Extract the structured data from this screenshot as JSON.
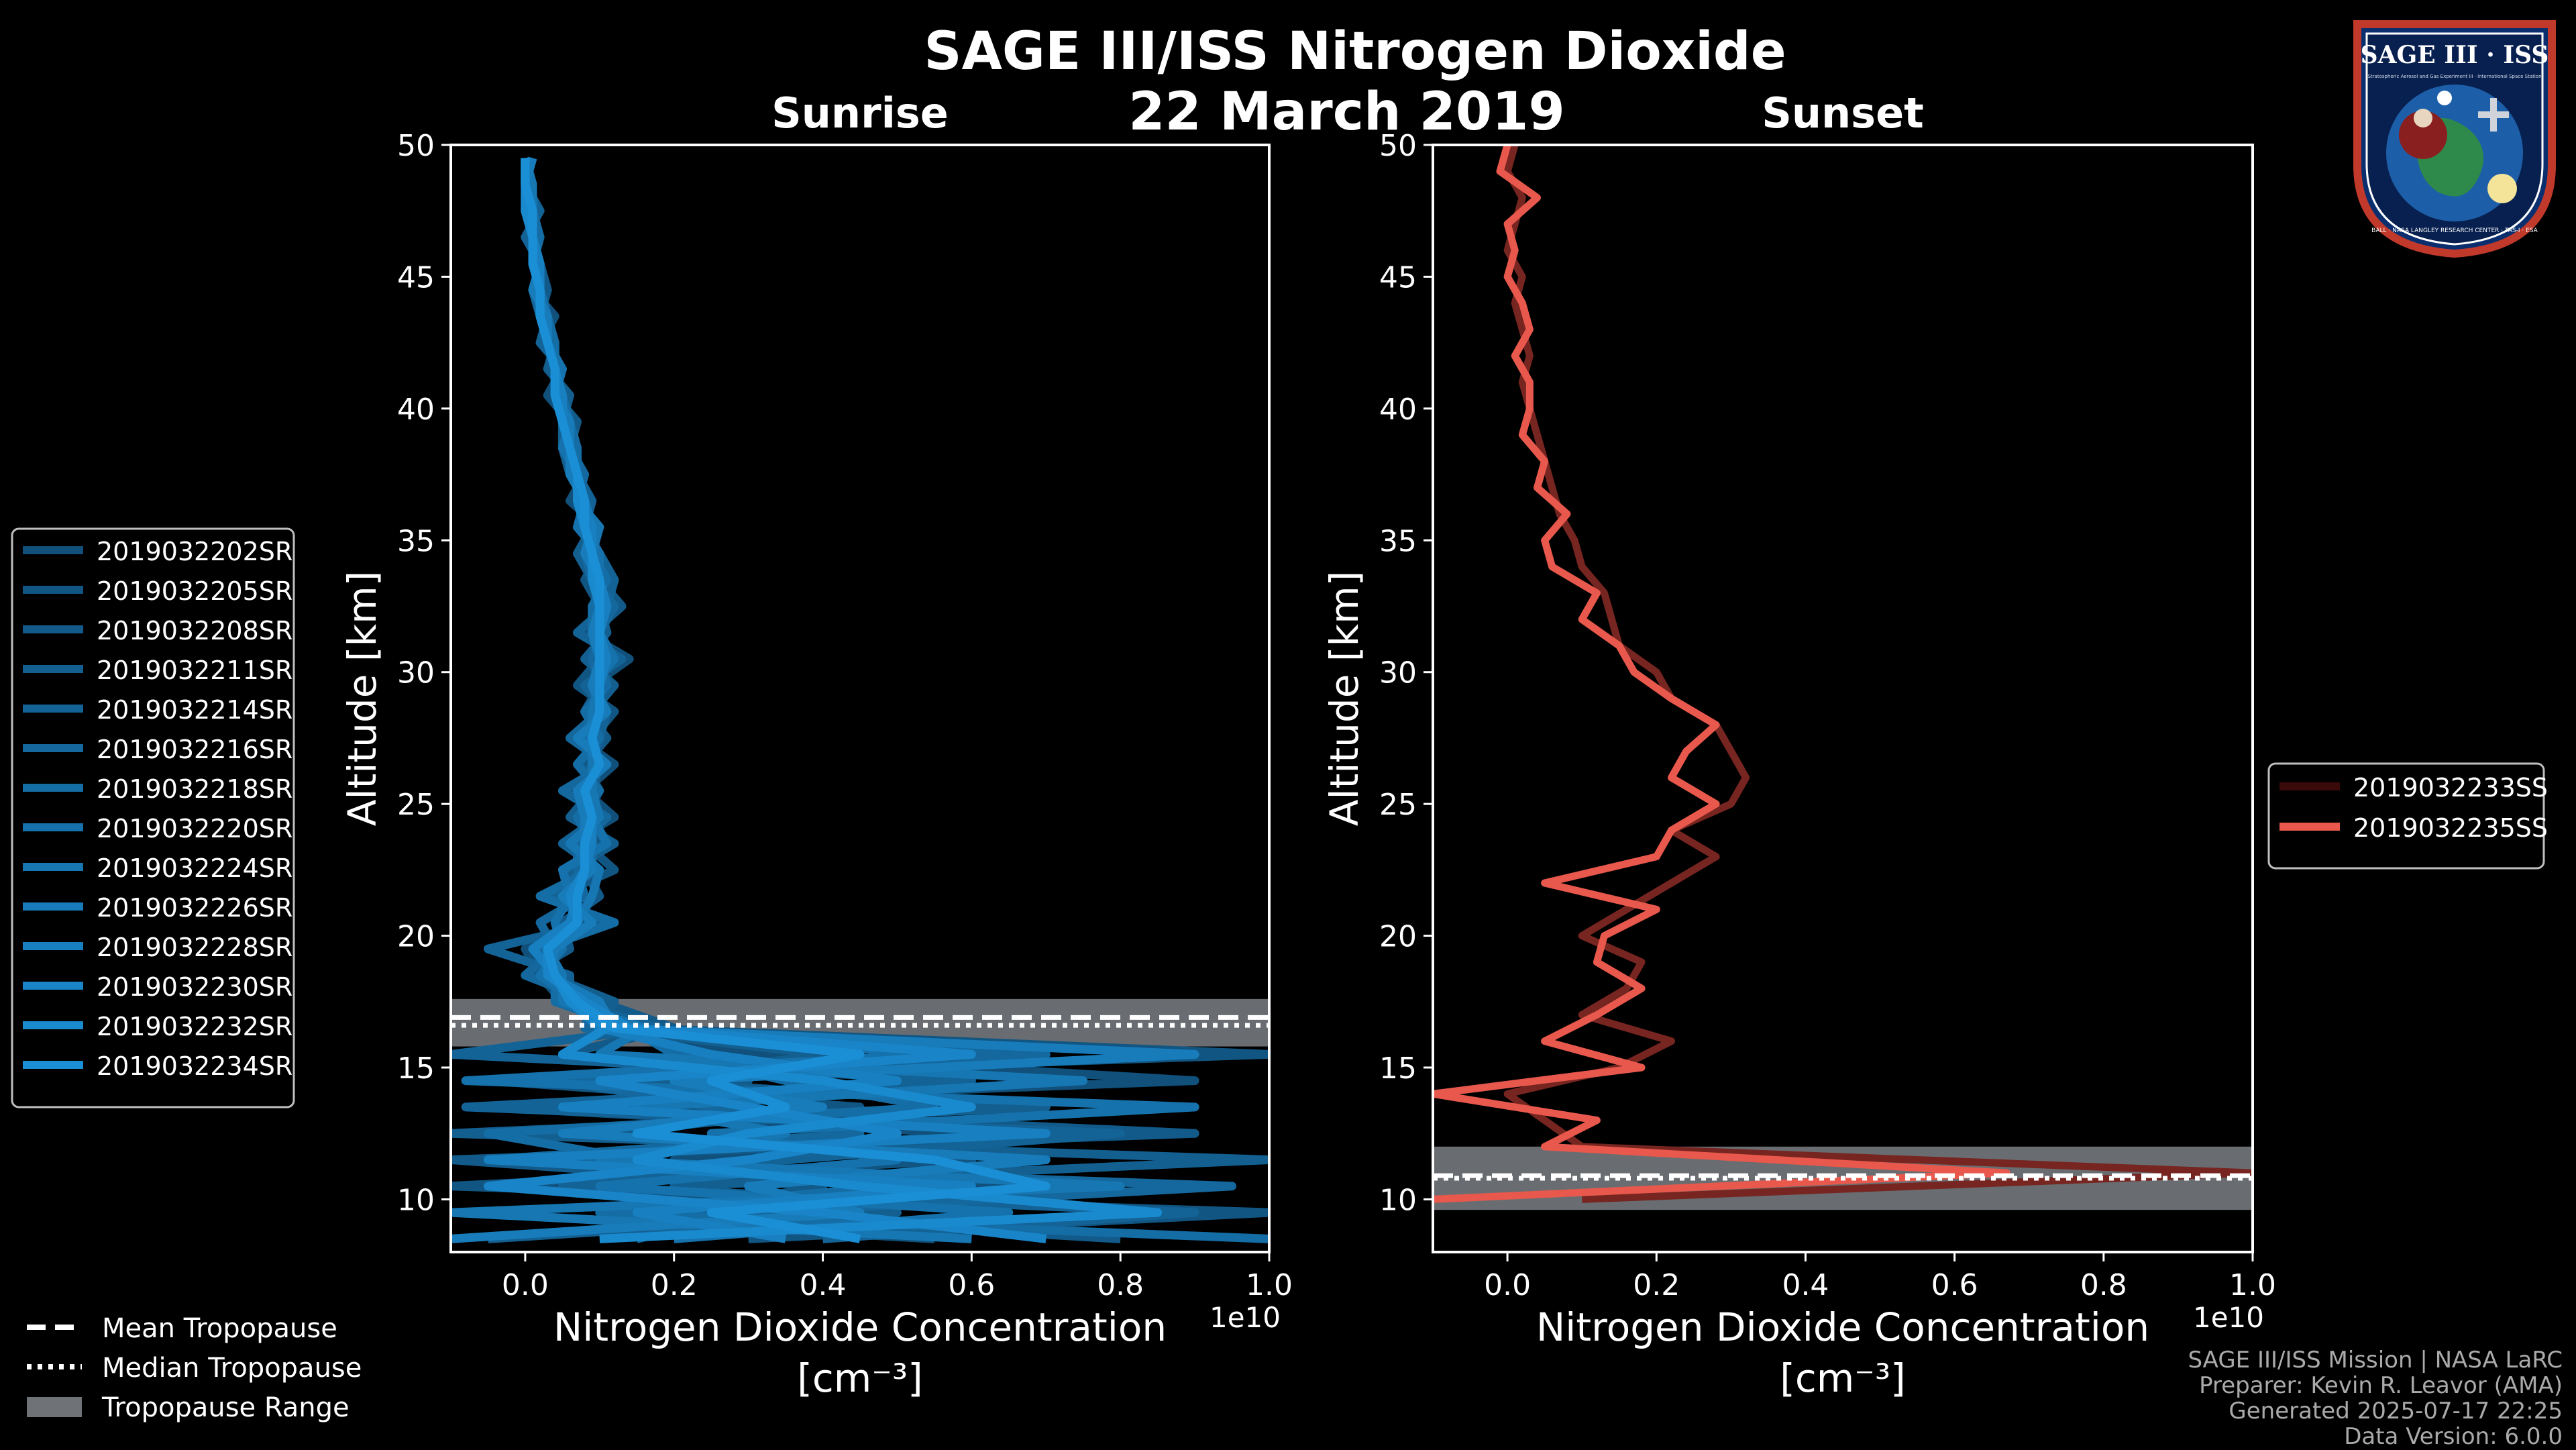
{
  "title_line1": "SAGE III/ISS Nitrogen Dioxide",
  "title_line2": "22 March 2019",
  "badge": {
    "top_text": "SAGE III · ISS",
    "sub_text": "Stratospheric Aerosol and Gas Experiment III · International Space Station",
    "ring_text": "BALL · NASA LANGLEY RESEARCH CENTER · TAS-I · ESA"
  },
  "footer": {
    "line1": "SAGE III/ISS Mission | NASA LaRC",
    "line2": "Preparer: Kevin R. Leavor (AMA)",
    "line3": "Generated 2025-07-17 22:25",
    "line4": "Data Version: 6.0.0"
  },
  "colors": {
    "background": "#000000",
    "sunrise": "#1b8fd6",
    "sunset": "#e8584c",
    "tropopause_band": "#6f7377"
  },
  "tropopause_legend": {
    "mean": "Mean Tropopause",
    "median": "Median Tropopause",
    "range": "Tropopause Range"
  },
  "chart_data": [
    {
      "type": "line",
      "title": "Sunrise",
      "xlabel": "Nitrogen Dioxide Concentration",
      "xlabel_units": "[cm⁻³]",
      "ylabel": "Altitude [km]",
      "x_offset_label": "1e10",
      "xlim": [
        -0.1,
        1.0
      ],
      "ylim": [
        8,
        50
      ],
      "xticks": [
        "0.0",
        "0.2",
        "0.4",
        "0.6",
        "0.8",
        "1.0"
      ],
      "xtick_values": [
        0,
        0.2,
        0.4,
        0.6,
        0.8,
        1.0
      ],
      "yticks": [
        "10",
        "15",
        "20",
        "25",
        "30",
        "35",
        "40",
        "45",
        "50"
      ],
      "ytick_values": [
        10,
        15,
        20,
        25,
        30,
        35,
        40,
        45,
        50
      ],
      "altitudes": [
        8.5,
        9.5,
        10.5,
        11.5,
        12.5,
        13.5,
        14.5,
        15.5,
        16.5,
        17.5,
        18.5,
        19.5,
        20.5,
        21.5,
        22.5,
        23.5,
        24.5,
        25.5,
        26.5,
        27.5,
        28.5,
        29.5,
        30.5,
        31.5,
        32.5,
        33.5,
        34.5,
        35.5,
        36.5,
        37.5,
        38.5,
        39.5,
        40.5,
        41.5,
        42.5,
        43.5,
        44.5,
        45.5,
        46.5,
        47.5,
        48.5,
        49.5
      ],
      "series": [
        {
          "name": "2019032202SR",
          "values": [
            0.55,
            -0.08,
            0.7,
            0.2,
            0.6,
            -0.05,
            0.9,
            0.3,
            0.12,
            0.05,
            0.02,
            0.0,
            0.08,
            0.05,
            0.1,
            0.06,
            0.12,
            0.08,
            0.12,
            0.07,
            0.1,
            0.09,
            0.14,
            0.08,
            0.12,
            0.1,
            0.08,
            0.1,
            0.06,
            0.08,
            0.05,
            0.06,
            0.03,
            0.05,
            0.02,
            0.04,
            0.01,
            0.02,
            0.0,
            0.02,
            0.0,
            0.01
          ]
        },
        {
          "name": "2019032205SR",
          "values": [
            0.3,
            1.0,
            -0.1,
            0.6,
            0.1,
            0.45,
            -0.05,
            1.0,
            0.15,
            0.08,
            0.05,
            0.03,
            0.1,
            0.04,
            0.12,
            0.08,
            0.1,
            0.06,
            0.1,
            0.09,
            0.12,
            0.07,
            0.1,
            0.1,
            0.1,
            0.08,
            0.1,
            0.07,
            0.08,
            0.06,
            0.07,
            0.05,
            0.05,
            0.04,
            0.03,
            0.03,
            0.02,
            0.01,
            0.02,
            0.0,
            0.01,
            0.0
          ]
        },
        {
          "name": "2019032208SR",
          "values": [
            0.8,
            0.2,
            0.4,
            -0.1,
            0.9,
            0.1,
            0.3,
            0.05,
            0.2,
            0.1,
            0.0,
            0.06,
            0.05,
            0.1,
            0.08,
            0.1,
            0.08,
            0.1,
            0.08,
            0.11,
            0.08,
            0.1,
            0.11,
            0.09,
            0.13,
            0.1,
            0.09,
            0.08,
            0.07,
            0.07,
            0.06,
            0.07,
            0.04,
            0.04,
            0.03,
            0.02,
            0.03,
            0.02,
            0.01,
            0.01,
            0.0,
            0.01
          ]
        },
        {
          "name": "2019032211SR",
          "values": [
            -0.05,
            0.5,
            0.2,
            1.0,
            -0.1,
            0.7,
            0.15,
            0.4,
            0.1,
            0.12,
            0.03,
            0.02,
            0.06,
            0.07,
            0.06,
            0.12,
            0.06,
            0.09,
            0.1,
            0.08,
            0.09,
            0.12,
            0.08,
            0.11,
            0.1,
            0.09,
            0.07,
            0.09,
            0.08,
            0.06,
            0.05,
            0.05,
            0.06,
            0.03,
            0.04,
            0.02,
            0.02,
            0.01,
            0.01,
            0.01,
            0.01,
            0.0
          ]
        },
        {
          "name": "2019032214SR",
          "values": [
            0.4,
            0.9,
            0.05,
            0.35,
            0.8,
            -0.08,
            0.6,
            -0.1,
            0.18,
            0.06,
            0.06,
            -0.05,
            0.1,
            0.03,
            0.1,
            0.05,
            0.1,
            0.07,
            0.09,
            0.1,
            0.11,
            0.08,
            0.13,
            0.07,
            0.11,
            0.12,
            0.1,
            0.08,
            0.09,
            0.07,
            0.06,
            0.06,
            0.04,
            0.05,
            0.02,
            0.03,
            0.02,
            0.02,
            0.0,
            0.02,
            0.0,
            0.01
          ]
        },
        {
          "name": "2019032216SR",
          "values": [
            0.15,
            0.3,
            0.95,
            -0.05,
            0.45,
            0.25,
            0.05,
            0.7,
            0.08,
            0.09,
            0.0,
            0.04,
            0.02,
            0.08,
            0.07,
            0.07,
            0.11,
            0.05,
            0.11,
            0.06,
            0.1,
            0.1,
            0.09,
            0.1,
            0.12,
            0.09,
            0.08,
            0.1,
            0.07,
            0.08,
            0.06,
            0.05,
            0.05,
            0.04,
            0.03,
            0.02,
            0.01,
            0.02,
            0.01,
            0.0,
            0.01,
            0.0
          ]
        },
        {
          "name": "2019032218SR",
          "values": [
            1.0,
            0.1,
            0.5,
            0.15,
            -0.05,
            0.55,
            0.35,
            0.2,
            0.14,
            0.04,
            0.04,
            0.02,
            0.12,
            0.02,
            0.09,
            0.09,
            0.07,
            0.1,
            0.07,
            0.1,
            0.08,
            0.11,
            0.1,
            0.09,
            0.09,
            0.11,
            0.09,
            0.09,
            0.08,
            0.07,
            0.07,
            0.06,
            0.05,
            0.04,
            0.04,
            0.03,
            0.02,
            0.01,
            0.02,
            0.01,
            0.0,
            0.0
          ]
        },
        {
          "name": "2019032220SR",
          "values": [
            0.2,
            0.65,
            0.1,
            0.5,
            0.25,
            0.9,
            -0.08,
            0.55,
            0.1,
            0.07,
            0.02,
            0.05,
            0.04,
            0.06,
            0.05,
            0.11,
            0.09,
            0.08,
            0.1,
            0.08,
            0.1,
            0.09,
            0.12,
            0.1,
            0.1,
            0.1,
            0.1,
            0.07,
            0.08,
            0.07,
            0.05,
            0.06,
            0.04,
            0.05,
            0.03,
            0.03,
            0.02,
            0.02,
            0.01,
            0.01,
            0.0,
            0.01
          ]
        },
        {
          "name": "2019032224SR",
          "values": [
            0.6,
            -0.1,
            0.8,
            0.1,
            0.35,
            0.15,
            0.75,
            0.1,
            0.16,
            0.05,
            0.05,
            0.03,
            0.07,
            0.09,
            0.1,
            0.06,
            0.1,
            0.09,
            0.09,
            0.09,
            0.09,
            0.1,
            0.1,
            0.1,
            0.11,
            0.09,
            0.09,
            0.1,
            0.07,
            0.07,
            0.06,
            0.05,
            0.05,
            0.04,
            0.03,
            0.02,
            0.02,
            0.01,
            0.01,
            0.01,
            0.01,
            0.0
          ]
        },
        {
          "name": "2019032226SR",
          "values": [
            -0.1,
            0.45,
            0.3,
            0.7,
            0.05,
            0.4,
            0.2,
            0.9,
            0.12,
            0.1,
            0.03,
            0.04,
            0.09,
            0.05,
            0.09,
            0.08,
            0.08,
            0.07,
            0.11,
            0.07,
            0.11,
            0.09,
            0.1,
            0.09,
            0.1,
            0.1,
            0.08,
            0.09,
            0.08,
            0.06,
            0.06,
            0.06,
            0.04,
            0.04,
            0.03,
            0.03,
            0.01,
            0.02,
            0.01,
            0.0,
            0.0,
            0.01
          ]
        },
        {
          "name": "2019032228SR",
          "values": [
            0.35,
            0.15,
            0.6,
            -0.05,
            0.7,
            0.05,
            0.5,
            0.25,
            0.1,
            0.06,
            0.04,
            0.01,
            0.06,
            0.07,
            0.08,
            0.09,
            0.09,
            0.08,
            0.1,
            0.09,
            0.1,
            0.1,
            0.11,
            0.1,
            0.11,
            0.1,
            0.09,
            0.09,
            0.07,
            0.07,
            0.06,
            0.05,
            0.05,
            0.04,
            0.03,
            0.02,
            0.02,
            0.02,
            0.01,
            0.01,
            0.0,
            0.0
          ]
        },
        {
          "name": "2019032230SR",
          "values": [
            0.7,
            0.4,
            -0.05,
            0.3,
            0.5,
            0.3,
            0.1,
            0.6,
            0.14,
            0.08,
            0.03,
            0.03,
            0.07,
            0.06,
            0.08,
            0.08,
            0.09,
            0.08,
            0.1,
            0.09,
            0.1,
            0.1,
            0.1,
            0.1,
            0.1,
            0.1,
            0.09,
            0.08,
            0.08,
            0.07,
            0.06,
            0.05,
            0.04,
            0.04,
            0.03,
            0.02,
            0.02,
            0.01,
            0.01,
            0.01,
            0.0,
            0.0
          ]
        },
        {
          "name": "2019032232SR",
          "values": [
            0.1,
            0.85,
            0.45,
            0.15,
            0.3,
            0.6,
            0.4,
            0.05,
            0.11,
            0.06,
            0.04,
            0.03,
            0.07,
            0.07,
            0.08,
            0.08,
            0.09,
            0.08,
            0.1,
            0.09,
            0.1,
            0.1,
            0.1,
            0.1,
            0.1,
            0.09,
            0.09,
            0.08,
            0.07,
            0.07,
            0.06,
            0.05,
            0.04,
            0.04,
            0.03,
            0.02,
            0.02,
            0.01,
            0.01,
            0.0,
            0.0,
            0.0
          ]
        },
        {
          "name": "2019032234SR",
          "values": [
            0.45,
            0.25,
            0.7,
            0.55,
            0.15,
            0.35,
            0.25,
            0.45,
            0.12,
            0.07,
            0.04,
            0.03,
            0.07,
            0.07,
            0.08,
            0.08,
            0.09,
            0.08,
            0.1,
            0.09,
            0.1,
            0.1,
            0.1,
            0.1,
            0.1,
            0.1,
            0.09,
            0.08,
            0.08,
            0.07,
            0.06,
            0.05,
            0.04,
            0.04,
            0.03,
            0.02,
            0.02,
            0.01,
            0.01,
            0.01,
            0.0,
            0.0
          ]
        }
      ],
      "tropopause": {
        "mean": 16.9,
        "median": 16.6,
        "range": [
          15.8,
          17.6
        ]
      }
    },
    {
      "type": "line",
      "title": "Sunset",
      "xlabel": "Nitrogen Dioxide Concentration",
      "xlabel_units": "[cm⁻³]",
      "ylabel": "Altitude [km]",
      "x_offset_label": "1e10",
      "xlim": [
        -0.1,
        1.0
      ],
      "ylim": [
        8,
        50
      ],
      "xticks": [
        "0.0",
        "0.2",
        "0.4",
        "0.6",
        "0.8",
        "1.0"
      ],
      "xtick_values": [
        0,
        0.2,
        0.4,
        0.6,
        0.8,
        1.0
      ],
      "yticks": [
        "10",
        "15",
        "20",
        "25",
        "30",
        "35",
        "40",
        "45",
        "50"
      ],
      "ytick_values": [
        10,
        15,
        20,
        25,
        30,
        35,
        40,
        45,
        50
      ],
      "altitudes": [
        10.0,
        11.0,
        12.0,
        13.0,
        14.0,
        15.0,
        16.0,
        17.0,
        18.0,
        19.0,
        20.0,
        21.0,
        22.0,
        23.0,
        24.0,
        25.0,
        26.0,
        27.0,
        28.0,
        29.0,
        30.0,
        31.0,
        32.0,
        33.0,
        34.0,
        35.0,
        36.0,
        37.0,
        38.0,
        39.0,
        40.0,
        41.0,
        42.0,
        43.0,
        44.0,
        45.0,
        46.0,
        47.0,
        48.0,
        49.0,
        50.0
      ],
      "series": [
        {
          "name": "2019032233SS",
          "values": [
            0.1,
            1.0,
            0.1,
            0.05,
            0.0,
            0.15,
            0.22,
            0.1,
            0.16,
            0.18,
            0.1,
            0.16,
            0.22,
            0.28,
            0.22,
            0.3,
            0.32,
            0.3,
            0.28,
            0.22,
            0.2,
            0.15,
            0.14,
            0.13,
            0.1,
            0.09,
            0.07,
            0.06,
            0.05,
            0.04,
            0.03,
            0.02,
            0.03,
            0.02,
            0.01,
            0.02,
            0.0,
            0.01,
            0.02,
            0.0,
            0.01
          ]
        },
        {
          "name": "2019032235SS",
          "values": [
            -0.1,
            0.67,
            0.05,
            0.12,
            -0.1,
            0.18,
            0.05,
            0.12,
            0.18,
            0.12,
            0.13,
            0.2,
            0.05,
            0.2,
            0.22,
            0.28,
            0.22,
            0.24,
            0.28,
            0.22,
            0.17,
            0.15,
            0.1,
            0.12,
            0.06,
            0.05,
            0.08,
            0.04,
            0.05,
            0.02,
            0.03,
            0.03,
            0.01,
            0.03,
            0.02,
            0.0,
            0.01,
            0.0,
            0.04,
            -0.01,
            0.0
          ]
        }
      ],
      "tropopause": {
        "mean": 10.9,
        "median": 10.8,
        "range": [
          9.6,
          12.0
        ]
      }
    }
  ]
}
